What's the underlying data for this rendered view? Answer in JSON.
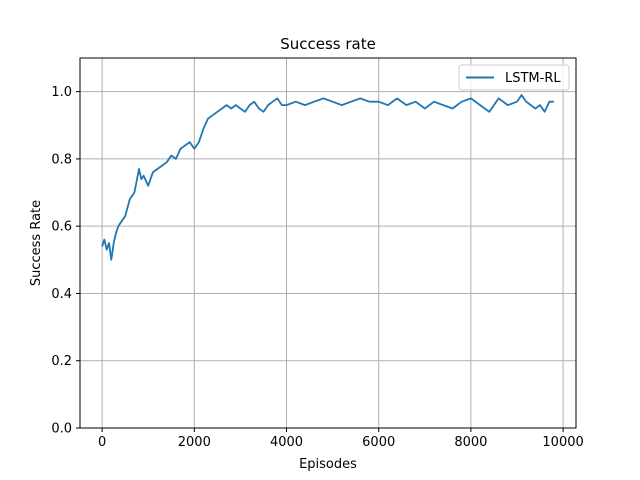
{
  "chart_data": {
    "type": "line",
    "title": "Success rate",
    "xlabel": "Episodes",
    "ylabel": "Success Rate",
    "xlim": [
      -480,
      10280
    ],
    "ylim": [
      0.0,
      1.1
    ],
    "x_ticks": [
      0,
      2000,
      4000,
      6000,
      8000,
      10000
    ],
    "x_tick_labels": [
      "0",
      "2000",
      "4000",
      "6000",
      "8000",
      "10000"
    ],
    "y_ticks": [
      0.0,
      0.2,
      0.4,
      0.6,
      0.8,
      1.0
    ],
    "y_tick_labels": [
      "0.0",
      "0.2",
      "0.4",
      "0.6",
      "0.8",
      "1.0"
    ],
    "grid": true,
    "legend": "top-right",
    "colors": {
      "series": "#1f77b4",
      "grid": "#b0b0b0"
    },
    "series": [
      {
        "name": "LSTM-RL",
        "x": [
          0,
          50,
          100,
          150,
          200,
          250,
          300,
          350,
          400,
          500,
          600,
          700,
          800,
          850,
          900,
          1000,
          1100,
          1200,
          1300,
          1400,
          1500,
          1600,
          1700,
          1800,
          1900,
          2000,
          2100,
          2200,
          2300,
          2400,
          2500,
          2600,
          2700,
          2800,
          2900,
          3000,
          3100,
          3200,
          3300,
          3400,
          3500,
          3600,
          3700,
          3800,
          3900,
          4000,
          4200,
          4400,
          4600,
          4800,
          5000,
          5200,
          5400,
          5600,
          5800,
          6000,
          6200,
          6400,
          6600,
          6800,
          7000,
          7200,
          7400,
          7600,
          7800,
          8000,
          8200,
          8400,
          8600,
          8800,
          9000,
          9100,
          9200,
          9400,
          9500,
          9600,
          9700,
          9800
        ],
        "y": [
          0.54,
          0.56,
          0.53,
          0.55,
          0.5,
          0.55,
          0.58,
          0.6,
          0.61,
          0.63,
          0.68,
          0.7,
          0.77,
          0.74,
          0.75,
          0.72,
          0.76,
          0.77,
          0.78,
          0.79,
          0.81,
          0.8,
          0.83,
          0.84,
          0.85,
          0.83,
          0.85,
          0.89,
          0.92,
          0.93,
          0.94,
          0.95,
          0.96,
          0.95,
          0.96,
          0.95,
          0.94,
          0.96,
          0.97,
          0.95,
          0.94,
          0.96,
          0.97,
          0.98,
          0.96,
          0.96,
          0.97,
          0.96,
          0.97,
          0.98,
          0.97,
          0.96,
          0.97,
          0.98,
          0.97,
          0.97,
          0.96,
          0.98,
          0.96,
          0.97,
          0.95,
          0.97,
          0.96,
          0.95,
          0.97,
          0.98,
          0.96,
          0.94,
          0.98,
          0.96,
          0.97,
          0.99,
          0.97,
          0.95,
          0.96,
          0.94,
          0.97,
          0.97
        ]
      }
    ]
  }
}
